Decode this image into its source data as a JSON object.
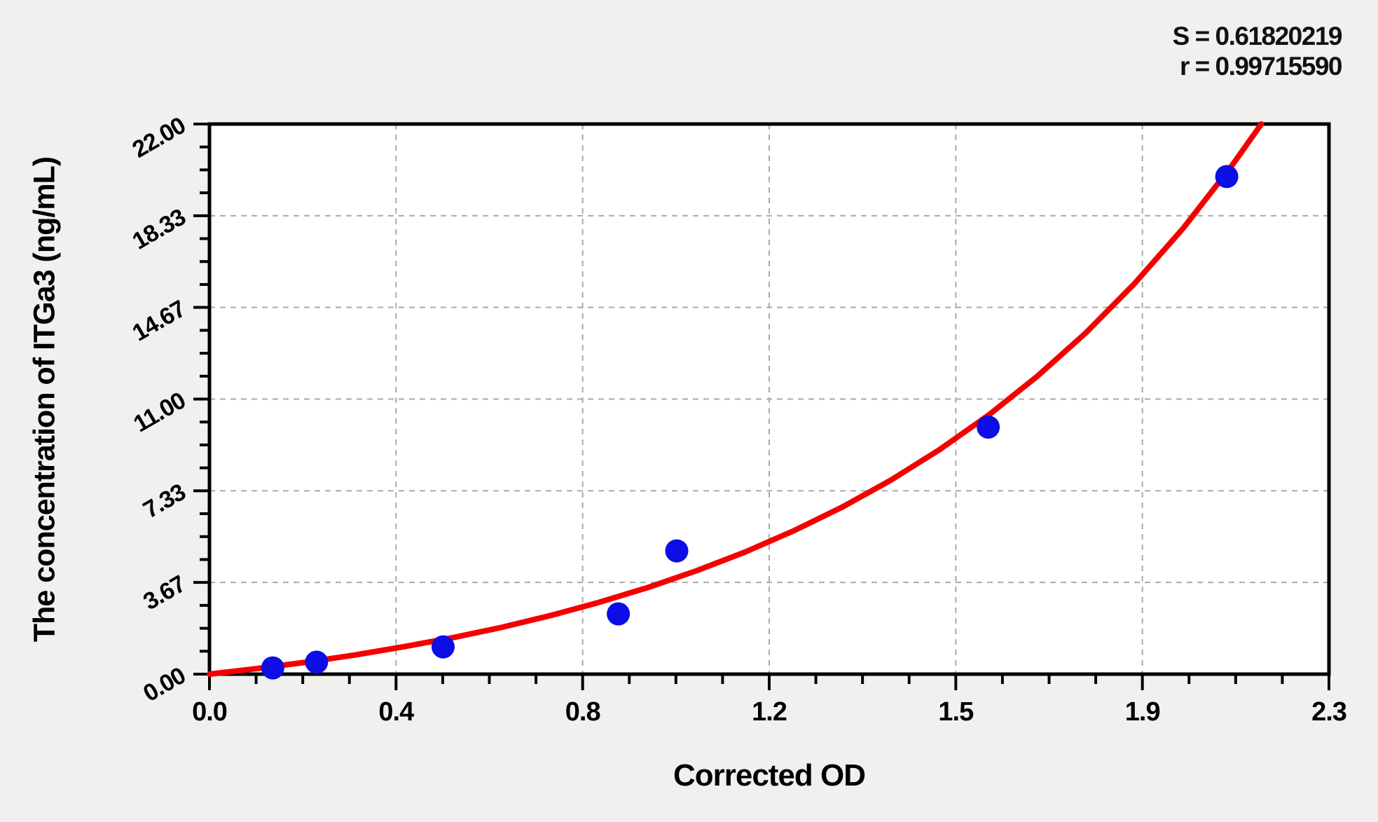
{
  "page": {
    "background_color": "#f0f0ee",
    "plot_background_color": "#ffffff",
    "axis_color": "#000000",
    "grid_color": "#aaaaaa"
  },
  "stats": {
    "s_label": "S = 0.61820219",
    "r_label": "r = 0.99715590"
  },
  "chart_data": {
    "type": "scatter",
    "title": "",
    "xlabel": "Corrected OD",
    "ylabel": "The concentration of ITGa3 (ng/mL)",
    "xlim": [
      0,
      2.3
    ],
    "ylim": [
      0,
      22
    ],
    "grid": "dashed lines at interior major ticks, both axes",
    "legend_position": "none",
    "x_major_ticks": {
      "values": [
        0,
        0.38333,
        0.76667,
        1.15,
        1.53333,
        1.91667,
        2.3
      ],
      "labels": [
        "0.0",
        "0.4",
        "0.8",
        "1.2",
        "1.5",
        "1.9",
        "2.3"
      ]
    },
    "y_major_ticks": {
      "values": [
        0,
        3.66667,
        7.33333,
        11,
        14.66667,
        18.33333,
        22
      ],
      "labels": [
        "0.00",
        "3.67",
        "7.33",
        "11.00",
        "14.67",
        "18.33",
        "22.00"
      ]
    },
    "minor_divisions_per_major": 4,
    "annotations": {
      "S": "0.61820219",
      "r": "0.99715590"
    },
    "series": [
      {
        "name": "standard-points",
        "type": "scatter",
        "color": "#0d0de6",
        "marker_radius_px": 16.5,
        "points": [
          [
            0.13,
            0.25
          ],
          [
            0.22,
            0.48
          ],
          [
            0.48,
            1.09
          ],
          [
            0.84,
            2.41
          ],
          [
            0.96,
            4.93
          ],
          [
            1.6,
            9.88
          ],
          [
            2.09,
            19.9
          ]
        ]
      },
      {
        "name": "fitted-curve",
        "type": "line",
        "color": "#f50000",
        "stroke_width_px": 8,
        "points": [
          [
            0.0,
            0.0
          ],
          [
            0.1,
            0.23
          ],
          [
            0.2,
            0.48
          ],
          [
            0.3,
            0.77
          ],
          [
            0.4,
            1.1
          ],
          [
            0.5,
            1.46
          ],
          [
            0.6,
            1.87
          ],
          [
            0.7,
            2.34
          ],
          [
            0.8,
            2.87
          ],
          [
            0.9,
            3.46
          ],
          [
            1.0,
            4.13
          ],
          [
            1.1,
            4.88
          ],
          [
            1.2,
            5.73
          ],
          [
            1.3,
            6.68
          ],
          [
            1.4,
            7.76
          ],
          [
            1.5,
            8.98
          ],
          [
            1.6,
            10.35
          ],
          [
            1.7,
            11.9
          ],
          [
            1.8,
            13.64
          ],
          [
            1.9,
            15.61
          ],
          [
            2.0,
            17.82
          ],
          [
            2.1,
            20.32
          ],
          [
            2.161,
            22.0
          ]
        ]
      }
    ]
  }
}
